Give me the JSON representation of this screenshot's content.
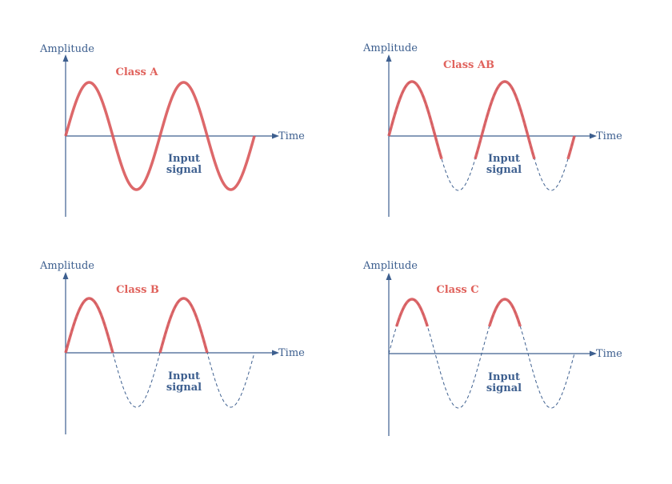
{
  "labels": {
    "amplitude": "Amplitude",
    "time": "Time",
    "input_line1": "Input",
    "input_line2": "signal"
  },
  "panels": [
    {
      "id": "class-a",
      "title": "Class A",
      "conduction_angle_deg": 360,
      "colors": {
        "output": "#d9585a",
        "input": "#3d5f8f"
      }
    },
    {
      "id": "class-ab",
      "title": "Class AB",
      "conduction_angle_deg": 230,
      "colors": {
        "output": "#d9585a",
        "input": "#3d5f8f"
      }
    },
    {
      "id": "class-b",
      "title": "Class B",
      "conduction_angle_deg": 180,
      "colors": {
        "output": "#d9585a",
        "input": "#3d5f8f"
      }
    },
    {
      "id": "class-c",
      "title": "Class C",
      "conduction_angle_deg": 120,
      "colors": {
        "output": "#d9585a",
        "input": "#3d5f8f"
      }
    }
  ]
}
